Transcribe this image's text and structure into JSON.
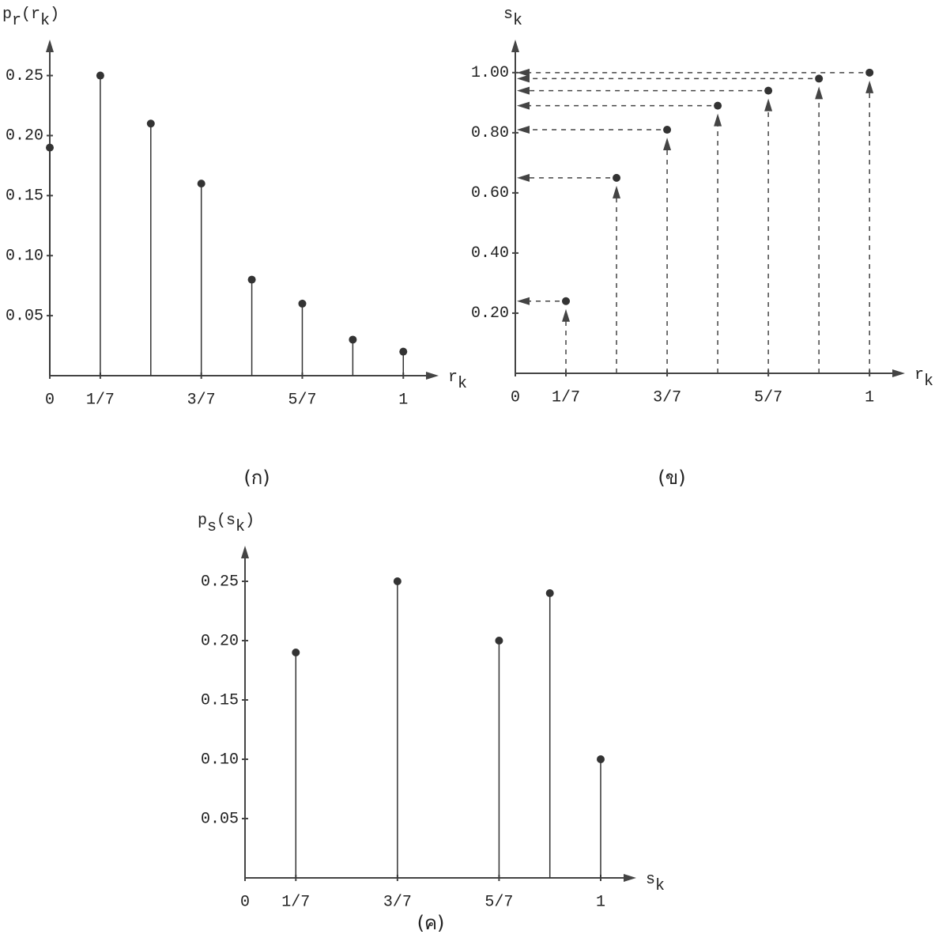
{
  "chart_data": [
    {
      "type": "stem",
      "caption": "(ก)",
      "y_label": [
        "p",
        "r",
        "(r",
        "k",
        ")"
      ],
      "x_label": [
        "r",
        "k"
      ],
      "x": [
        0,
        0.142857,
        0.285714,
        0.428571,
        0.571429,
        0.714286,
        0.857143,
        1
      ],
      "values": [
        0.19,
        0.25,
        0.21,
        0.16,
        0.08,
        0.06,
        0.03,
        0.02
      ],
      "xlim": [
        0,
        1.1
      ],
      "ylim": [
        0,
        0.28
      ],
      "xticks": [
        0,
        {
          "value": 0.142857,
          "label": "1/7"
        },
        {
          "value": 0.428571,
          "label": "3/7"
        },
        {
          "value": 0.714286,
          "label": "5/7"
        },
        1
      ],
      "yticks": [
        0.05,
        {
          "value": 0.1,
          "label": "0.10"
        },
        0.15,
        {
          "value": 0.2,
          "label": "0.20"
        },
        0.25
      ]
    },
    {
      "type": "mapping",
      "caption": "(ข)",
      "y_label": [
        "s",
        "k"
      ],
      "x_label": [
        "r",
        "k"
      ],
      "x": [
        0.142857,
        0.285714,
        0.428571,
        0.571429,
        0.714286,
        0.857143,
        1
      ],
      "values": [
        0.24,
        0.65,
        0.81,
        0.89,
        0.94,
        0.98,
        1.0
      ],
      "xlim": [
        0,
        1.1
      ],
      "ylim": [
        0,
        1.11
      ],
      "xticks": [
        0,
        {
          "value": 0.142857,
          "label": "1/7"
        },
        {
          "value": 0.428571,
          "label": "3/7"
        },
        {
          "value": 0.714286,
          "label": "5/7"
        },
        1
      ],
      "yticks": [
        {
          "value": 0.2,
          "label": "0.20"
        },
        {
          "value": 0.4,
          "label": "0.40"
        },
        {
          "value": 0.6,
          "label": "0.60"
        },
        {
          "value": 0.8,
          "label": "0.80"
        },
        {
          "value": 1,
          "label": "1.00"
        }
      ]
    },
    {
      "type": "stem",
      "caption": "(ค)",
      "y_label": [
        "p",
        "s",
        "(s",
        "k",
        ")"
      ],
      "x_label": [
        "s",
        "k"
      ],
      "x": [
        0.142857,
        0.428571,
        0.714286,
        0.857143,
        1
      ],
      "values": [
        0.19,
        0.25,
        0.2,
        0.24,
        0.1
      ],
      "xlim": [
        0,
        1.1
      ],
      "ylim": [
        0,
        0.28
      ],
      "xticks": [
        0,
        {
          "value": 0.142857,
          "label": "1/7"
        },
        {
          "value": 0.428571,
          "label": "3/7"
        },
        {
          "value": 0.714286,
          "label": "5/7"
        },
        1
      ],
      "yticks": [
        0.05,
        {
          "value": 0.1,
          "label": "0.10"
        },
        0.15,
        {
          "value": 0.2,
          "label": "0.20"
        },
        0.25
      ]
    }
  ]
}
